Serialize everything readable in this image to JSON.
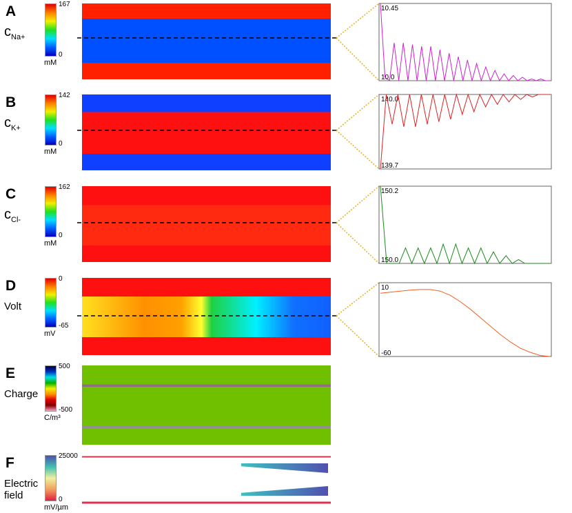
{
  "panels": [
    {
      "letter": "A",
      "label": "c",
      "sub": "Na+",
      "cbar_ticks": [
        0,
        167
      ],
      "unit": "mM"
    },
    {
      "letter": "B",
      "label": "c",
      "sub": "K+",
      "cbar_ticks": [
        0,
        142
      ],
      "unit": "mM"
    },
    {
      "letter": "C",
      "label": "c",
      "sub": "Cl-",
      "cbar_ticks": [
        0,
        162
      ],
      "unit": "mM"
    },
    {
      "letter": "D",
      "label": "Volt",
      "cbar_ticks": [
        -65,
        0
      ],
      "unit": "mV"
    },
    {
      "letter": "E",
      "label": "Charge",
      "cbar_ticks": [
        -500,
        500
      ],
      "unit": "C/m³"
    },
    {
      "letter": "F",
      "label": "Electric field",
      "cbar_ticks": [
        0,
        25000
      ],
      "unit": "mV/µm"
    }
  ],
  "chart_data": [
    {
      "type": "line",
      "color": "#d020d0",
      "ylim": [
        10.0,
        10.45
      ],
      "yticks": [
        {
          "value": 10.0,
          "label": "10.0"
        },
        10.45
      ],
      "values": [
        10.45,
        10.02,
        10.0,
        10.22,
        10.0,
        10.22,
        10.0,
        10.21,
        10.0,
        10.2,
        10.0,
        10.2,
        10.0,
        10.18,
        10.0,
        10.16,
        10.0,
        10.14,
        10.0,
        10.12,
        10.0,
        10.1,
        10.0,
        10.08,
        10.0,
        10.06,
        10.0,
        10.04,
        10.0,
        10.03,
        10.0,
        10.02,
        10.0,
        10.01,
        10.0,
        10.01,
        10.0,
        10.0
      ]
    },
    {
      "type": "line",
      "color": "#e02020",
      "ylim": [
        139.7,
        140.0
      ],
      "yticks": [
        139.7,
        {
          "value": 140.0,
          "label": "140.0"
        }
      ],
      "values": [
        139.7,
        140.0,
        139.88,
        140.0,
        139.87,
        140.0,
        139.87,
        140.0,
        139.88,
        140.0,
        139.89,
        140.0,
        139.9,
        140.0,
        139.92,
        140.0,
        139.93,
        140.0,
        139.95,
        140.0,
        139.96,
        140.0,
        139.97,
        140.0,
        139.98,
        140.0,
        139.99,
        140.0,
        140.0,
        140.0
      ]
    },
    {
      "type": "line",
      "color": "#1a8a1a",
      "ylim": [
        150.0,
        150.2
      ],
      "yticks": [
        {
          "value": 150.0,
          "label": "150.0"
        },
        150.2
      ],
      "values": [
        150.2,
        150.0,
        150.0,
        150.0,
        150.04,
        150.0,
        150.04,
        150.0,
        150.04,
        150.0,
        150.05,
        150.0,
        150.05,
        150.0,
        150.04,
        150.0,
        150.04,
        150.0,
        150.03,
        150.0,
        150.02,
        150.0,
        150.01,
        150.0,
        150.0,
        150.0,
        150.0,
        150.0
      ]
    },
    {
      "type": "line",
      "color": "#f06020",
      "ylim": [
        -60,
        10
      ],
      "yticks": [
        -60,
        10
      ],
      "values": [
        0,
        1,
        2,
        3,
        3.5,
        3.5,
        2,
        -2,
        -8,
        -15,
        -23,
        -31,
        -39,
        -46,
        -52,
        -56,
        -59,
        -60
      ]
    }
  ]
}
